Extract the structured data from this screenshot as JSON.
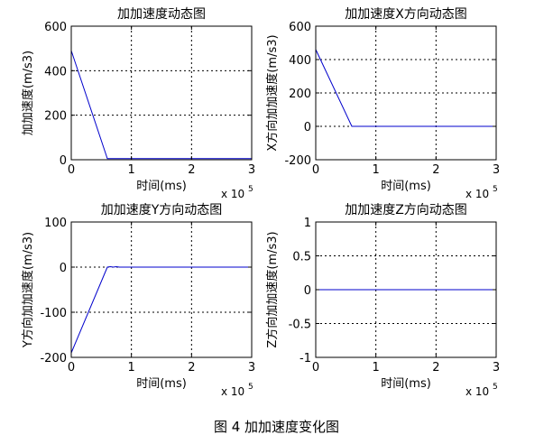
{
  "figure_caption": "图 4  加加速度变化图",
  "chart_data": [
    {
      "type": "line",
      "title": "加加速度动态图",
      "xlabel": "时间(ms)",
      "ylabel": "加加速度(m/s3)",
      "x_multiplier": "x 10",
      "x_multiplier_exp": "5",
      "xlim": [
        0,
        3
      ],
      "ylim": [
        0,
        600
      ],
      "xticks": [
        "0",
        "1",
        "2",
        "3"
      ],
      "yticks": [
        "0",
        "200",
        "400",
        "600"
      ],
      "grid": true,
      "line_color": "#0000cc",
      "series": [
        {
          "x": [
            0,
            0.6,
            3
          ],
          "y": [
            490,
            5,
            5
          ]
        }
      ]
    },
    {
      "type": "line",
      "title": "加加速度X方向动态图",
      "xlabel": "时间(ms)",
      "ylabel": "X方向加加速度(m/s3)",
      "x_multiplier": "x 10",
      "x_multiplier_exp": "5",
      "xlim": [
        0,
        3
      ],
      "ylim": [
        -200,
        600
      ],
      "xticks": [
        "0",
        "1",
        "2",
        "3"
      ],
      "yticks": [
        "-200",
        "0",
        "200",
        "400",
        "600"
      ],
      "grid": true,
      "line_color": "#0000cc",
      "series": [
        {
          "x": [
            0,
            0.6,
            3
          ],
          "y": [
            460,
            0,
            0
          ]
        }
      ]
    },
    {
      "type": "line",
      "title": "加加速度Y方向动态图",
      "xlabel": "时间(ms)",
      "ylabel": "Y方向加加速度(m/s3)",
      "x_multiplier": "x 10",
      "x_multiplier_exp": "5",
      "xlim": [
        0,
        3
      ],
      "ylim": [
        -200,
        100
      ],
      "xticks": [
        "0",
        "1",
        "2",
        "3"
      ],
      "yticks": [
        "-200",
        "-100",
        "0",
        "100"
      ],
      "grid": true,
      "line_color": "#0000cc",
      "series": [
        {
          "x": [
            0,
            0.6,
            0.65,
            0.7,
            0.75,
            0.8,
            3
          ],
          "y": [
            -190,
            0,
            1,
            0,
            1,
            0,
            0
          ]
        }
      ]
    },
    {
      "type": "line",
      "title": "加加速度Z方向动态图",
      "xlabel": "时间(ms)",
      "ylabel": "Z方向加加速度(m/s3)",
      "x_multiplier": "x 10",
      "x_multiplier_exp": "5",
      "xlim": [
        0,
        3
      ],
      "ylim": [
        -1,
        1
      ],
      "xticks": [
        "0",
        "1",
        "2",
        "3"
      ],
      "yticks": [
        "-1",
        "-0.5",
        "0",
        "0.5",
        "1"
      ],
      "grid": true,
      "line_color": "#0000cc",
      "series": [
        {
          "x": [
            0,
            3
          ],
          "y": [
            0,
            0
          ]
        }
      ]
    }
  ]
}
